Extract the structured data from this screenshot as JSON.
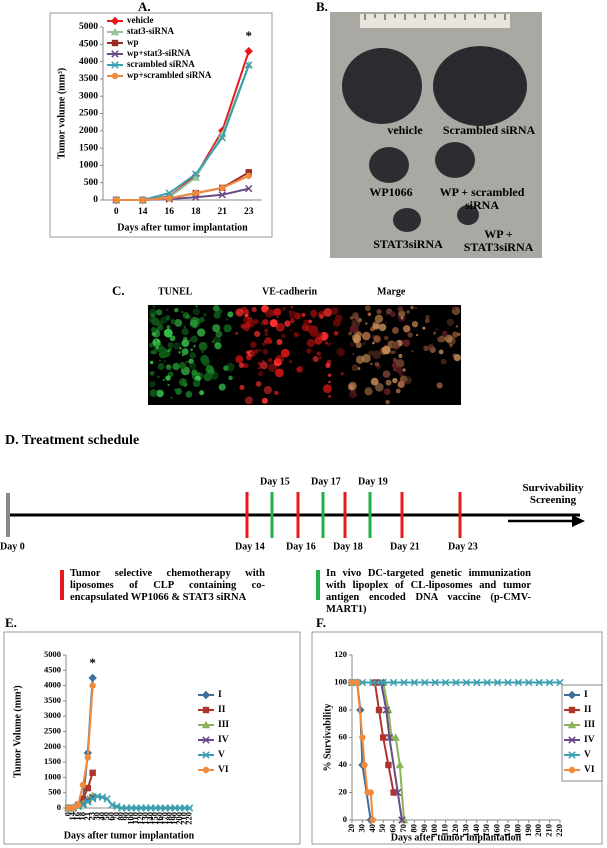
{
  "panels": {
    "a": "A.",
    "b": "B.",
    "c": "C.",
    "d": "D. Treatment schedule",
    "e": "E.",
    "f": "F."
  },
  "chart_data": [
    {
      "type": "line",
      "annotation": "*",
      "y_label": "Tumor volume (mm³)",
      "x_label": "Days after tumor implantation",
      "categories": [
        "0",
        "14",
        "16",
        "18",
        "21",
        "23"
      ],
      "ylim": [
        0,
        5000
      ],
      "yticks": [
        0,
        500,
        1000,
        1500,
        2000,
        2500,
        3000,
        3500,
        4000,
        4500,
        5000
      ],
      "legend": "upper left",
      "series": [
        {
          "name": "vehicle",
          "color": "#e8191c",
          "marker": "diamond",
          "values": [
            0,
            0,
            100,
            700,
            2000,
            4300
          ]
        },
        {
          "name": "stat3-siRNA",
          "color": "#93c69a",
          "marker": "triangle",
          "values": [
            0,
            0,
            80,
            650,
            1900,
            3900
          ]
        },
        {
          "name": "wp",
          "color": "#9b2b26",
          "marker": "square",
          "values": [
            0,
            0,
            50,
            200,
            350,
            800
          ]
        },
        {
          "name": "wp+stat3-siRNA",
          "color": "#6a4a86",
          "marker": "x",
          "values": [
            0,
            0,
            30,
            80,
            150,
            330
          ]
        },
        {
          "name": "scrambled siRNA",
          "color": "#3b9fb0",
          "marker": "x",
          "values": [
            0,
            0,
            200,
            750,
            1800,
            3900
          ]
        },
        {
          "name": "wp+scrambled siRNA",
          "color": "#f08a3c",
          "marker": "circle",
          "values": [
            0,
            0,
            50,
            200,
            350,
            700
          ]
        }
      ]
    },
    {
      "type": "line",
      "annotation": "*",
      "y_label": "Tumor Volume (mm³)",
      "x_label": "Days after tumor implantation",
      "categories": [
        "0",
        "14",
        "16",
        "18",
        "21",
        "23",
        "30",
        "40",
        "50",
        "60",
        "70",
        "80",
        "90",
        "100",
        "110",
        "120",
        "130",
        "140",
        "150",
        "160",
        "170",
        "180",
        "190",
        "200",
        "210",
        "220"
      ],
      "ylim": [
        0,
        5000
      ],
      "yticks": [
        0,
        500,
        1000,
        1500,
        2000,
        2500,
        3000,
        3500,
        4000,
        4500,
        5000
      ],
      "legend": "right",
      "series": [
        {
          "name": "I",
          "color": "#3f6f99",
          "marker": "diamond",
          "values": [
            0,
            0,
            100,
            250,
            1800,
            4250,
            null,
            null,
            null,
            null,
            null,
            null,
            null,
            null,
            null,
            null,
            null,
            null,
            null,
            null,
            null,
            null,
            null,
            null,
            null,
            null
          ]
        },
        {
          "name": "II",
          "color": "#b0332c",
          "marker": "square",
          "values": [
            0,
            0,
            100,
            300,
            650,
            1150,
            null,
            null,
            null,
            null,
            null,
            null,
            null,
            null,
            null,
            null,
            null,
            null,
            null,
            null,
            null,
            null,
            null,
            null,
            null,
            null
          ]
        },
        {
          "name": "III",
          "color": "#8db35a",
          "marker": "triangle",
          "values": [
            0,
            0,
            80,
            150,
            300,
            400,
            null,
            null,
            null,
            null,
            null,
            null,
            null,
            null,
            null,
            null,
            null,
            null,
            null,
            null,
            null,
            null,
            null,
            null,
            null,
            null
          ]
        },
        {
          "name": "IV",
          "color": "#6a4a86",
          "marker": "x",
          "values": [
            0,
            0,
            60,
            120,
            250,
            350,
            null,
            null,
            null,
            null,
            null,
            null,
            null,
            null,
            null,
            null,
            null,
            null,
            null,
            null,
            null,
            null,
            null,
            null,
            null,
            null
          ]
        },
        {
          "name": "V",
          "color": "#3b9fb0",
          "marker": "x",
          "values": [
            0,
            0,
            50,
            100,
            200,
            300,
            380,
            350,
            300,
            100,
            50,
            0,
            0,
            0,
            0,
            0,
            0,
            0,
            0,
            0,
            0,
            0,
            0,
            0,
            0,
            0
          ]
        },
        {
          "name": "VI",
          "color": "#f08a3c",
          "marker": "circle",
          "values": [
            0,
            0,
            100,
            750,
            1650,
            4000,
            null,
            null,
            null,
            null,
            null,
            null,
            null,
            null,
            null,
            null,
            null,
            null,
            null,
            null,
            null,
            null,
            null,
            null,
            null,
            null
          ]
        }
      ]
    },
    {
      "type": "line",
      "y_label": "% Survivability",
      "x_label": "Days after tumor implantation",
      "xlim": [
        20,
        220
      ],
      "xticks": [
        20,
        30,
        40,
        50,
        60,
        70,
        80,
        90,
        100,
        110,
        120,
        130,
        140,
        150,
        160,
        170,
        180,
        190,
        200,
        210,
        220
      ],
      "ylim": [
        0,
        120
      ],
      "yticks": [
        0,
        20,
        40,
        60,
        80,
        100,
        120
      ],
      "legend": "right",
      "series": [
        {
          "name": "I",
          "color": "#3f6f99",
          "marker": "diamond",
          "x": [
            20,
            25,
            28,
            30,
            38
          ],
          "values": [
            100,
            100,
            80,
            40,
            0
          ]
        },
        {
          "name": "II",
          "color": "#b0332c",
          "marker": "square",
          "x": [
            20,
            42,
            46,
            50,
            55,
            60
          ],
          "values": [
            100,
            100,
            80,
            60,
            40,
            20
          ]
        },
        {
          "name": "III",
          "color": "#8db35a",
          "marker": "triangle",
          "x": [
            20,
            50,
            55,
            58,
            62,
            66,
            70
          ],
          "values": [
            100,
            100,
            80,
            60,
            60,
            40,
            0
          ]
        },
        {
          "name": "IV",
          "color": "#6a4a86",
          "marker": "x",
          "x": [
            20,
            48,
            53,
            56,
            64,
            68
          ],
          "values": [
            100,
            100,
            80,
            60,
            20,
            0
          ]
        },
        {
          "name": "V",
          "color": "#3b9fb0",
          "marker": "x",
          "x": [
            20,
            30,
            40,
            50,
            60,
            70,
            80,
            90,
            100,
            110,
            120,
            130,
            140,
            150,
            160,
            170,
            180,
            190,
            200,
            210,
            220
          ],
          "values": [
            100,
            100,
            100,
            100,
            100,
            100,
            100,
            100,
            100,
            100,
            100,
            100,
            100,
            100,
            100,
            100,
            100,
            100,
            100,
            100,
            100
          ]
        },
        {
          "name": "VI",
          "color": "#f08a3c",
          "marker": "circle",
          "x": [
            20,
            25,
            30,
            32,
            35,
            38,
            40
          ],
          "values": [
            100,
            100,
            60,
            40,
            20,
            20,
            0
          ]
        }
      ]
    }
  ],
  "photo_b": {
    "labels": [
      "vehicle",
      "Scrambled siRNA",
      "WP1066",
      "WP + scrambled siRNA",
      "STAT3siRNA",
      "WP + STAT3siRNA"
    ]
  },
  "microscopy": {
    "labels": [
      "TUNEL",
      "VE-cadherin",
      "Marge"
    ]
  },
  "schedule": {
    "days": [
      "Day 0",
      "Day 14",
      "Day 15",
      "Day 16",
      "Day 17",
      "Day 18",
      "Day 19",
      "Day 21",
      "Day 23"
    ],
    "end": "Survivability Screening",
    "legend": [
      "Tumor selective chemotherapy with liposomes of CLP containing co-encapsulated WP1066 & STAT3 siRNA",
      "In vivo DC-targeted genetic immunization with lipoplex of CL-liposomes and tumor antigen encoded DNA vaccine (p-CMV-MART1)"
    ]
  }
}
